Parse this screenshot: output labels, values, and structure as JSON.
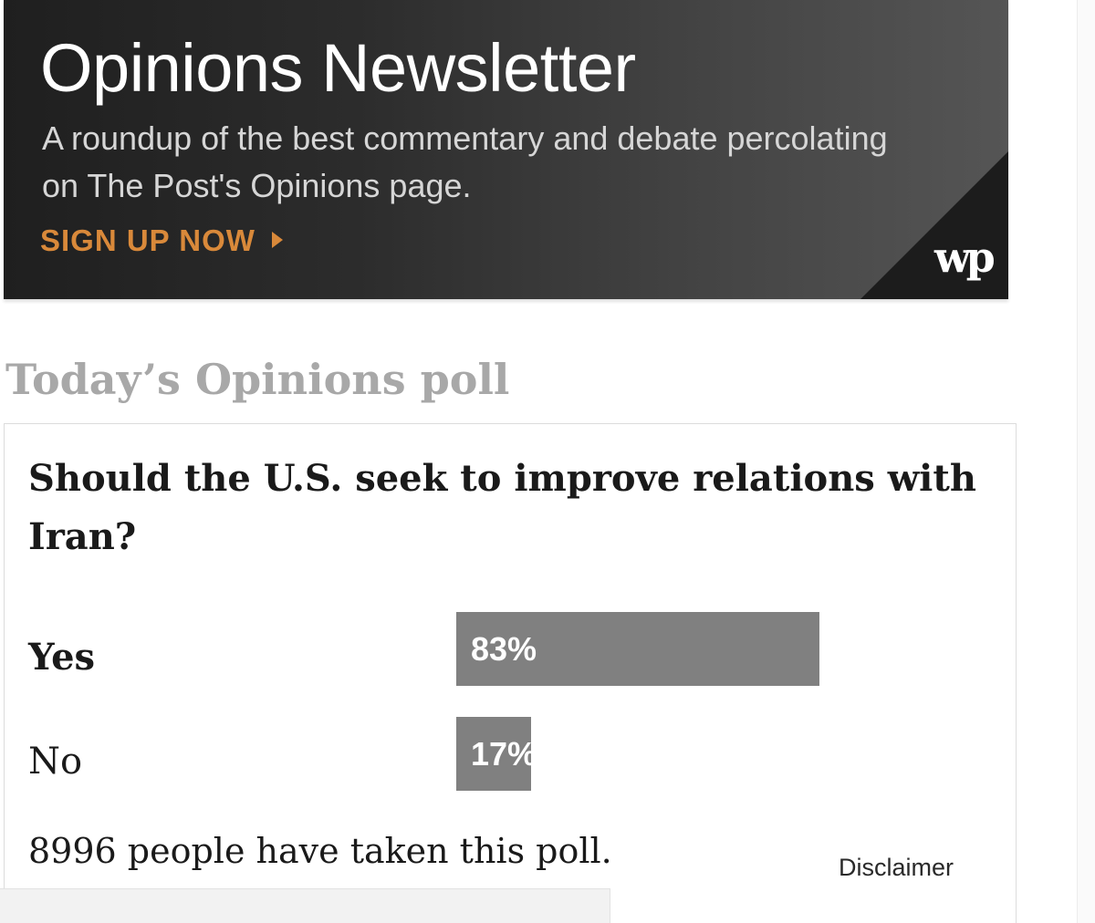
{
  "newsletter": {
    "title": "Opinions Newsletter",
    "description": "A roundup of the best commentary and debate percolating on The Post's Opinions page.",
    "signup_label": "SIGN UP NOW",
    "logo_text": "wp",
    "accent_color": "#d9893a"
  },
  "poll": {
    "heading": "Today’s Opinions poll",
    "question": "Should the U.S. seek to improve relations with Iran?",
    "answers": [
      {
        "label": "Yes",
        "percent": 83,
        "percent_label": "83%",
        "selected": true
      },
      {
        "label": "No",
        "percent": 17,
        "percent_label": "17%",
        "selected": false
      }
    ],
    "participants_text": "8996 people have taken this poll.",
    "disclaimer_label": "Disclaimer",
    "bar_color": "#808080"
  }
}
